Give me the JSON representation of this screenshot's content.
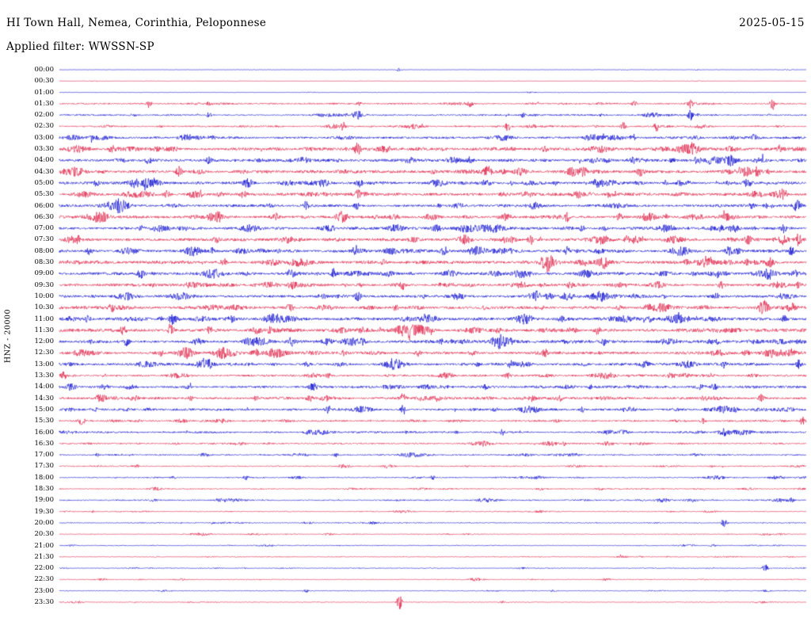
{
  "header": {
    "title": "HI Town Hall, Nemea, Corinthia, Peloponnese",
    "date": "2025-05-15",
    "filter_line": "Applied filter: WWSSN-SP"
  },
  "axis": {
    "left_label": "HNZ - 20000"
  },
  "chart_data": {
    "type": "line",
    "subtype": "helicorder-seismogram",
    "title": "HI Town Hall, Nemea, Corinthia, Peloponnese",
    "date": "2025-05-15",
    "filter": "WWSSN-SP",
    "channel_scale_label": "HNZ - 20000",
    "row_interval_minutes": 30,
    "palette": {
      "blue": "#0000cd",
      "red": "#dc143c"
    },
    "rows": [
      {
        "label": "00:00",
        "color": "blue",
        "a": 0.06,
        "bursts": [
          [
            0.455,
            1.5
          ]
        ]
      },
      {
        "label": "00:30",
        "color": "red",
        "a": 0.06,
        "bursts": []
      },
      {
        "label": "01:00",
        "color": "blue",
        "a": 0.07,
        "bursts": []
      },
      {
        "label": "01:30",
        "color": "red",
        "a": 0.28,
        "bursts": [
          [
            0.12,
            2
          ],
          [
            0.2,
            2.5
          ],
          [
            0.55,
            2.5
          ],
          [
            0.77,
            2
          ],
          [
            0.845,
            4
          ],
          [
            0.955,
            4.5
          ]
        ]
      },
      {
        "label": "02:00",
        "color": "blue",
        "a": 0.3,
        "bursts": [
          [
            0.2,
            2
          ],
          [
            0.4,
            5
          ],
          [
            0.62,
            2
          ],
          [
            0.845,
            4
          ]
        ]
      },
      {
        "label": "02:30",
        "color": "red",
        "a": 0.3,
        "bursts": [
          [
            0.38,
            3
          ],
          [
            0.6,
            2.5
          ],
          [
            0.755,
            3
          ],
          [
            0.8,
            3.5
          ]
        ]
      },
      {
        "label": "03:00",
        "color": "blue",
        "a": 0.45,
        "bursts": [
          [
            0.93,
            2.5
          ]
        ]
      },
      {
        "label": "03:30",
        "color": "red",
        "a": 0.6,
        "bursts": [
          [
            0.07,
            2.5
          ],
          [
            0.4,
            3
          ],
          [
            0.65,
            2
          ]
        ]
      },
      {
        "label": "04:00",
        "color": "blue",
        "a": 0.58,
        "bursts": [
          [
            0.12,
            3
          ],
          [
            0.55,
            2.5
          ],
          [
            0.9,
            2
          ]
        ]
      },
      {
        "label": "04:30",
        "color": "red",
        "a": 0.6,
        "bursts": [
          [
            0.16,
            4
          ],
          [
            0.5,
            2
          ]
        ]
      },
      {
        "label": "05:00",
        "color": "blue",
        "a": 0.55,
        "bursts": [
          [
            0.05,
            2
          ]
        ]
      },
      {
        "label": "05:30",
        "color": "red",
        "a": 0.55,
        "bursts": [
          [
            0.4,
            2.5
          ],
          [
            0.97,
            3.5
          ]
        ]
      },
      {
        "label": "06:00",
        "color": "blue",
        "a": 0.5,
        "bursts": [
          [
            0.33,
            3
          ]
        ]
      },
      {
        "label": "06:30",
        "color": "red",
        "a": 0.55,
        "bursts": [
          [
            0.68,
            3
          ],
          [
            0.75,
            2.5
          ]
        ]
      },
      {
        "label": "07:00",
        "color": "blue",
        "a": 0.55,
        "bursts": [
          [
            0.7,
            2.5
          ],
          [
            0.97,
            3
          ]
        ]
      },
      {
        "label": "07:30",
        "color": "red",
        "a": 0.55,
        "bursts": [
          [
            0.21,
            2.5
          ],
          [
            0.63,
            2.5
          ],
          [
            0.99,
            4
          ]
        ]
      },
      {
        "label": "08:00",
        "color": "blue",
        "a": 0.55,
        "bursts": [
          [
            0.04,
            2.5
          ],
          [
            0.68,
            3
          ],
          [
            0.98,
            3
          ]
        ]
      },
      {
        "label": "08:30",
        "color": "red",
        "a": 0.6,
        "bursts": [
          [
            0.22,
            3
          ],
          [
            0.73,
            3
          ],
          [
            0.92,
            2.5
          ]
        ]
      },
      {
        "label": "09:00",
        "color": "blue",
        "a": 0.6,
        "bursts": [
          [
            0.88,
            3
          ],
          [
            0.95,
            2.5
          ]
        ]
      },
      {
        "label": "09:30",
        "color": "red",
        "a": 0.55,
        "bursts": [
          [
            0.46,
            3
          ],
          [
            0.99,
            2.5
          ]
        ]
      },
      {
        "label": "10:00",
        "color": "blue",
        "a": 0.55,
        "bursts": [
          [
            0.4,
            3.5
          ],
          [
            0.64,
            2.5
          ]
        ]
      },
      {
        "label": "10:30",
        "color": "red",
        "a": 0.55,
        "bursts": [
          [
            0.07,
            3
          ],
          [
            0.45,
            2
          ],
          [
            0.98,
            2.5
          ]
        ]
      },
      {
        "label": "11:00",
        "color": "blue",
        "a": 0.6,
        "bursts": [
          [
            0.15,
            3
          ],
          [
            0.83,
            2.5
          ],
          [
            0.97,
            2.5
          ]
        ]
      },
      {
        "label": "11:30",
        "color": "red",
        "a": 0.6,
        "bursts": [
          [
            0.15,
            3.5
          ],
          [
            0.2,
            3
          ],
          [
            0.72,
            3.5
          ]
        ]
      },
      {
        "label": "12:00",
        "color": "blue",
        "a": 0.55,
        "bursts": [
          [
            0.09,
            3
          ],
          [
            0.31,
            3
          ],
          [
            0.51,
            2.5
          ],
          [
            0.59,
            3
          ],
          [
            0.73,
            2.5
          ]
        ]
      },
      {
        "label": "12:30",
        "color": "red",
        "a": 0.55,
        "bursts": [
          [
            0.48,
            2.5
          ],
          [
            0.65,
            3.5
          ],
          [
            0.98,
            2.5
          ]
        ]
      },
      {
        "label": "13:00",
        "color": "blue",
        "a": 0.5,
        "bursts": [
          [
            0.99,
            3
          ]
        ]
      },
      {
        "label": "13:30",
        "color": "red",
        "a": 0.4,
        "bursts": [
          [
            0.36,
            2
          ],
          [
            0.6,
            2
          ]
        ]
      },
      {
        "label": "14:00",
        "color": "blue",
        "a": 0.45,
        "bursts": [
          [
            0.57,
            2
          ]
        ]
      },
      {
        "label": "14:30",
        "color": "red",
        "a": 0.45,
        "bursts": [
          [
            0.46,
            3.5
          ],
          [
            0.67,
            2.5
          ],
          [
            0.94,
            3.5
          ]
        ]
      },
      {
        "label": "15:00",
        "color": "blue",
        "a": 0.45,
        "bursts": [
          [
            0.36,
            3
          ],
          [
            0.46,
            4
          ],
          [
            0.7,
            2.5
          ]
        ]
      },
      {
        "label": "15:30",
        "color": "red",
        "a": 0.35,
        "bursts": [
          [
            0.03,
            3.5
          ],
          [
            0.995,
            3
          ]
        ]
      },
      {
        "label": "16:00",
        "color": "blue",
        "a": 0.35,
        "bursts": []
      },
      {
        "label": "16:30",
        "color": "red",
        "a": 0.28,
        "bursts": []
      },
      {
        "label": "17:00",
        "color": "blue",
        "a": 0.25,
        "bursts": [
          [
            0.37,
            1.5
          ]
        ]
      },
      {
        "label": "17:30",
        "color": "red",
        "a": 0.22,
        "bursts": []
      },
      {
        "label": "18:00",
        "color": "blue",
        "a": 0.22,
        "bursts": [
          [
            0.25,
            1.5
          ],
          [
            0.5,
            1.5
          ]
        ]
      },
      {
        "label": "18:30",
        "color": "red",
        "a": 0.2,
        "bursts": []
      },
      {
        "label": "19:00",
        "color": "blue",
        "a": 0.25,
        "bursts": [
          [
            0.98,
            1.5
          ]
        ]
      },
      {
        "label": "19:30",
        "color": "red",
        "a": 0.18,
        "bursts": []
      },
      {
        "label": "20:00",
        "color": "blue",
        "a": 0.18,
        "bursts": [
          [
            0.89,
            3.5
          ]
        ]
      },
      {
        "label": "20:30",
        "color": "red",
        "a": 0.16,
        "bursts": []
      },
      {
        "label": "21:00",
        "color": "blue",
        "a": 0.16,
        "bursts": []
      },
      {
        "label": "21:30",
        "color": "red",
        "a": 0.15,
        "bursts": []
      },
      {
        "label": "22:00",
        "color": "blue",
        "a": 0.15,
        "bursts": [
          [
            0.945,
            3
          ]
        ]
      },
      {
        "label": "22:30",
        "color": "red",
        "a": 0.14,
        "bursts": []
      },
      {
        "label": "23:00",
        "color": "blue",
        "a": 0.14,
        "bursts": [
          [
            0.33,
            1.2
          ]
        ]
      },
      {
        "label": "23:30",
        "color": "red",
        "a": 0.13,
        "bursts": [
          [
            0.455,
            6
          ]
        ]
      }
    ]
  }
}
